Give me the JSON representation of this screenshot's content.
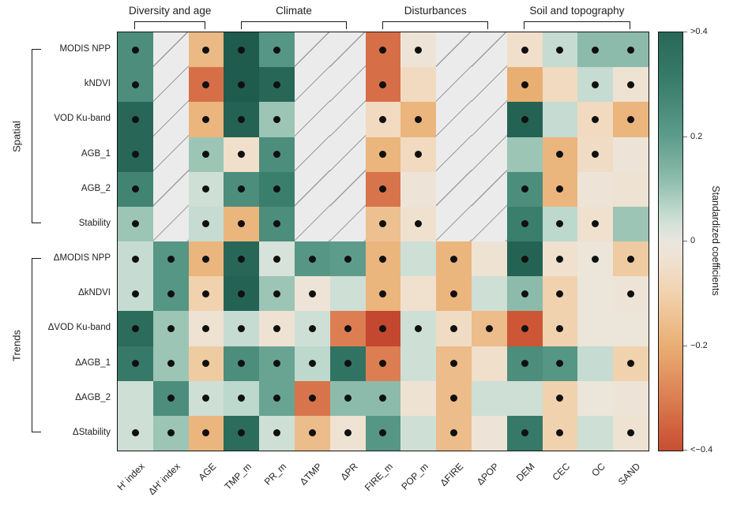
{
  "chart_data": {
    "type": "heatmap",
    "columns": [
      "H′ index",
      "ΔH′ index",
      "AGE",
      "TMP_m",
      "PR_m",
      "ΔTMP",
      "ΔPR",
      "FIRE_m",
      "POP_m",
      "ΔFIRE",
      "ΔPOP",
      "DEM",
      "CEC",
      "OC",
      "SAND"
    ],
    "rows": [
      "MODIS NPP",
      "kNDVI",
      "VOD Ku-band",
      "AGB_1",
      "AGB_2",
      "Stability",
      "ΔMODIS NPP",
      "ΔkNDVI",
      "ΔVOD Ku-band",
      "ΔAGB_1",
      "ΔAGB_2",
      "ΔStability"
    ],
    "column_groups": [
      {
        "label": "Diversity and age",
        "start": 0,
        "end": 2
      },
      {
        "label": "Climate",
        "start": 3,
        "end": 6
      },
      {
        "label": "Disturbances",
        "start": 7,
        "end": 10
      },
      {
        "label": "Soil and topography",
        "start": 11,
        "end": 14
      }
    ],
    "row_groups": [
      {
        "label": "Spatial",
        "start": 0,
        "end": 5
      },
      {
        "label": "Trends",
        "start": 6,
        "end": 11
      }
    ],
    "values": [
      [
        0.25,
        null,
        -0.17,
        0.45,
        0.22,
        null,
        null,
        -0.33,
        -0.02,
        null,
        null,
        -0.05,
        0.05,
        0.12,
        0.12
      ],
      [
        0.25,
        null,
        -0.33,
        0.45,
        0.4,
        null,
        null,
        -0.33,
        -0.07,
        null,
        null,
        -0.2,
        -0.07,
        0.05,
        -0.03
      ],
      [
        0.4,
        null,
        -0.18,
        0.42,
        0.1,
        null,
        null,
        -0.07,
        -0.18,
        null,
        null,
        0.42,
        0.05,
        -0.07,
        -0.18
      ],
      [
        0.4,
        null,
        0.1,
        -0.05,
        0.25,
        null,
        null,
        -0.18,
        -0.07,
        null,
        null,
        0.1,
        -0.18,
        -0.06,
        -0.02
      ],
      [
        0.28,
        null,
        0.04,
        0.25,
        0.3,
        null,
        null,
        -0.32,
        -0.02,
        null,
        null,
        0.25,
        -0.18,
        -0.02,
        -0.03
      ],
      [
        0.1,
        null,
        0.05,
        -0.18,
        0.25,
        null,
        null,
        -0.15,
        -0.04,
        null,
        null,
        0.3,
        0.06,
        -0.04,
        0.1
      ],
      [
        0.05,
        0.22,
        -0.18,
        0.4,
        0.03,
        0.22,
        0.2,
        -0.18,
        0.04,
        -0.18,
        -0.03,
        0.42,
        -0.04,
        -0.01,
        -0.12
      ],
      [
        0.05,
        0.22,
        -0.1,
        0.42,
        0.1,
        -0.02,
        0.04,
        -0.18,
        -0.04,
        -0.18,
        0.04,
        0.12,
        -0.1,
        -0.01,
        -0.02
      ],
      [
        0.38,
        0.1,
        -0.03,
        0.05,
        -0.03,
        0.04,
        -0.3,
        -0.42,
        0.04,
        -0.06,
        -0.16,
        -0.38,
        -0.1,
        -0.01,
        -0.01
      ],
      [
        0.32,
        0.1,
        -0.12,
        0.25,
        0.18,
        0.06,
        0.35,
        -0.3,
        0.04,
        -0.16,
        -0.05,
        0.25,
        0.22,
        0.05,
        -0.1
      ],
      [
        0.04,
        0.25,
        0.04,
        0.06,
        0.18,
        -0.32,
        0.12,
        0.12,
        -0.03,
        -0.16,
        0.04,
        0.04,
        -0.1,
        -0.01,
        -0.02
      ],
      [
        0.04,
        0.1,
        -0.18,
        0.38,
        0.04,
        -0.16,
        -0.03,
        0.22,
        0.04,
        -0.16,
        -0.02,
        0.32,
        -0.1,
        0.04,
        -0.03
      ]
    ],
    "significant": [
      [
        1,
        0,
        1,
        1,
        1,
        0,
        0,
        1,
        1,
        0,
        0,
        1,
        1,
        1,
        1
      ],
      [
        1,
        0,
        1,
        1,
        1,
        0,
        0,
        1,
        0,
        0,
        0,
        1,
        0,
        1,
        1
      ],
      [
        1,
        0,
        1,
        1,
        1,
        0,
        0,
        1,
        1,
        0,
        0,
        1,
        0,
        1,
        1
      ],
      [
        1,
        0,
        1,
        1,
        1,
        0,
        0,
        1,
        1,
        0,
        0,
        0,
        1,
        1,
        0
      ],
      [
        1,
        0,
        1,
        1,
        1,
        0,
        0,
        1,
        0,
        0,
        0,
        1,
        1,
        0,
        0
      ],
      [
        1,
        0,
        1,
        1,
        1,
        0,
        0,
        1,
        1,
        0,
        0,
        1,
        1,
        1,
        0
      ],
      [
        1,
        1,
        1,
        1,
        1,
        1,
        1,
        1,
        0,
        1,
        0,
        1,
        1,
        1,
        1
      ],
      [
        1,
        1,
        1,
        1,
        1,
        1,
        0,
        1,
        0,
        1,
        0,
        1,
        1,
        0,
        1
      ],
      [
        1,
        1,
        1,
        1,
        1,
        1,
        1,
        1,
        1,
        1,
        1,
        1,
        1,
        0,
        0
      ],
      [
        1,
        1,
        1,
        1,
        1,
        1,
        1,
        1,
        0,
        1,
        0,
        1,
        1,
        0,
        1
      ],
      [
        0,
        1,
        1,
        1,
        1,
        1,
        1,
        1,
        0,
        1,
        0,
        0,
        1,
        0,
        0
      ],
      [
        1,
        1,
        1,
        1,
        1,
        1,
        1,
        1,
        0,
        1,
        0,
        1,
        1,
        0,
        1
      ]
    ],
    "colorbar": {
      "label": "Standardized coefficients",
      "vmin": -0.4,
      "vmax": 0.4,
      "ticks": [
        {
          "label": ">0.4",
          "value": 0.4
        },
        {
          "label": "0.2",
          "value": 0.2
        },
        {
          "label": "0",
          "value": 0
        },
        {
          "label": "−0.2",
          "value": -0.2
        },
        {
          "label": "<−0.4",
          "value": -0.4
        }
      ]
    },
    "colormap": [
      {
        "v": 0.45,
        "c": "#1f5c4d"
      },
      {
        "v": 0.3,
        "c": "#3a7e6c"
      },
      {
        "v": 0.2,
        "c": "#5d9c8b"
      },
      {
        "v": 0.12,
        "c": "#8cbbab"
      },
      {
        "v": 0.06,
        "c": "#bdd8cd"
      },
      {
        "v": 0.02,
        "c": "#dfe5de"
      },
      {
        "v": 0.0,
        "c": "#e9e6de"
      },
      {
        "v": -0.04,
        "c": "#f0e1cf"
      },
      {
        "v": -0.1,
        "c": "#f1d2ae"
      },
      {
        "v": -0.2,
        "c": "#e9ae72"
      },
      {
        "v": -0.3,
        "c": "#dc7e52"
      },
      {
        "v": -0.38,
        "c": "#cc5636"
      },
      {
        "v": -0.45,
        "c": "#bc3d2a"
      }
    ],
    "missing_cell_color": "#ebebeb",
    "dot_color": "#101010"
  }
}
